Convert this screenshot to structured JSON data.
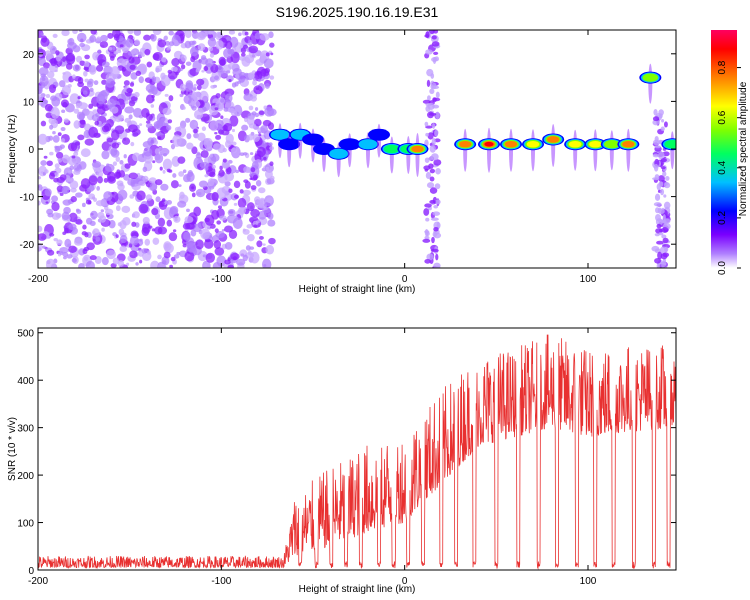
{
  "title": "S196.2025.190.16.19.E31",
  "chart_data": [
    {
      "type": "heatmap",
      "xlabel": "Height of straight line (km)",
      "ylabel": "Frequency (Hz)",
      "xlim": [
        -200,
        148
      ],
      "ylim": [
        -25,
        25
      ],
      "x_ticks": [
        "-200",
        "-100",
        "0",
        "100"
      ],
      "x_tick_values": [
        -200,
        -100,
        0,
        100
      ],
      "y_ticks": [
        "20",
        "10",
        "0",
        "-10",
        "-20"
      ],
      "y_tick_values": [
        20,
        10,
        0,
        -10,
        -20
      ],
      "colorbar": {
        "label": "Normalized spectral amplitude",
        "range": [
          0.0,
          0.95
        ],
        "ticks": [
          "0.0",
          "0.2",
          "0.4",
          "0.6",
          "0.8"
        ],
        "tick_values": [
          0.0,
          0.2,
          0.4,
          0.6,
          0.8
        ],
        "colormap": [
          "#ffffff",
          "#b080ff",
          "#7a00ff",
          "#0000ff",
          "#00c0ff",
          "#00ff60",
          "#80ff00",
          "#ffff00",
          "#ff8000",
          "#ff0000",
          "#ff0060"
        ]
      },
      "noise_region_km": [
        -200,
        -72
      ],
      "blobs": [
        {
          "x": -68,
          "f": 3,
          "amp": 0.35
        },
        {
          "x": -63,
          "f": 1,
          "amp": 0.3
        },
        {
          "x": -57,
          "f": 3,
          "amp": 0.4
        },
        {
          "x": -50,
          "f": 2,
          "amp": 0.3
        },
        {
          "x": -44,
          "f": 0,
          "amp": 0.3
        },
        {
          "x": -36,
          "f": -1,
          "amp": 0.35
        },
        {
          "x": -30,
          "f": 1,
          "amp": 0.3
        },
        {
          "x": -20,
          "f": 1,
          "amp": 0.4
        },
        {
          "x": -14,
          "f": 3,
          "amp": 0.3
        },
        {
          "x": -7,
          "f": 0,
          "amp": 0.45
        },
        {
          "x": 2,
          "f": 0,
          "amp": 0.5
        },
        {
          "x": 7,
          "f": 0,
          "amp": 0.8
        },
        {
          "x": 33,
          "f": 1,
          "amp": 0.75
        },
        {
          "x": 46,
          "f": 1,
          "amp": 0.85
        },
        {
          "x": 58,
          "f": 1,
          "amp": 0.75
        },
        {
          "x": 70,
          "f": 1,
          "amp": 0.7
        },
        {
          "x": 81,
          "f": 2,
          "amp": 0.75
        },
        {
          "x": 93,
          "f": 1,
          "amp": 0.65
        },
        {
          "x": 104,
          "f": 1,
          "amp": 0.7
        },
        {
          "x": 113,
          "f": 1,
          "amp": 0.6
        },
        {
          "x": 122,
          "f": 1,
          "amp": 0.75
        },
        {
          "x": 134,
          "f": 15,
          "amp": 0.6
        },
        {
          "x": 146,
          "f": 1,
          "amp": 0.5
        }
      ],
      "vertical_streaks": [
        {
          "x": 15,
          "fmin": -25,
          "fmax": 25
        },
        {
          "x": 140,
          "fmin": -25,
          "fmax": 8
        }
      ]
    },
    {
      "type": "line",
      "xlabel": "Height of straight line (km)",
      "ylabel": "SNR (10 * v/v)",
      "xlim": [
        -200,
        148
      ],
      "ylim": [
        0,
        510
      ],
      "x_ticks": [
        "-200",
        "-100",
        "0",
        "100"
      ],
      "x_tick_values": [
        -200,
        -100,
        0,
        100
      ],
      "y_ticks": [
        "500",
        "400",
        "300",
        "200",
        "100",
        "0"
      ],
      "y_tick_values": [
        500,
        400,
        300,
        200,
        100,
        0
      ],
      "line_color": "#e83030",
      "envelope": [
        {
          "x": -200,
          "lo": 5,
          "hi": 30
        },
        {
          "x": -66,
          "lo": 5,
          "hi": 30
        },
        {
          "x": -60,
          "lo": 30,
          "hi": 160
        },
        {
          "x": -40,
          "lo": 50,
          "hi": 220
        },
        {
          "x": -20,
          "lo": 80,
          "hi": 270
        },
        {
          "x": 0,
          "lo": 100,
          "hi": 300
        },
        {
          "x": 20,
          "lo": 180,
          "hi": 380
        },
        {
          "x": 40,
          "lo": 260,
          "hi": 460
        },
        {
          "x": 60,
          "lo": 280,
          "hi": 470
        },
        {
          "x": 80,
          "lo": 300,
          "hi": 500
        },
        {
          "x": 100,
          "lo": 280,
          "hi": 470
        },
        {
          "x": 120,
          "lo": 290,
          "hi": 480
        },
        {
          "x": 148,
          "lo": 300,
          "hi": 480
        }
      ],
      "dropouts_km": [
        -57,
        -48,
        -40,
        -32,
        -24,
        -14,
        -6,
        2,
        10,
        20,
        28,
        38,
        50,
        62,
        73,
        83,
        94,
        104,
        114,
        125,
        136,
        144
      ]
    }
  ]
}
